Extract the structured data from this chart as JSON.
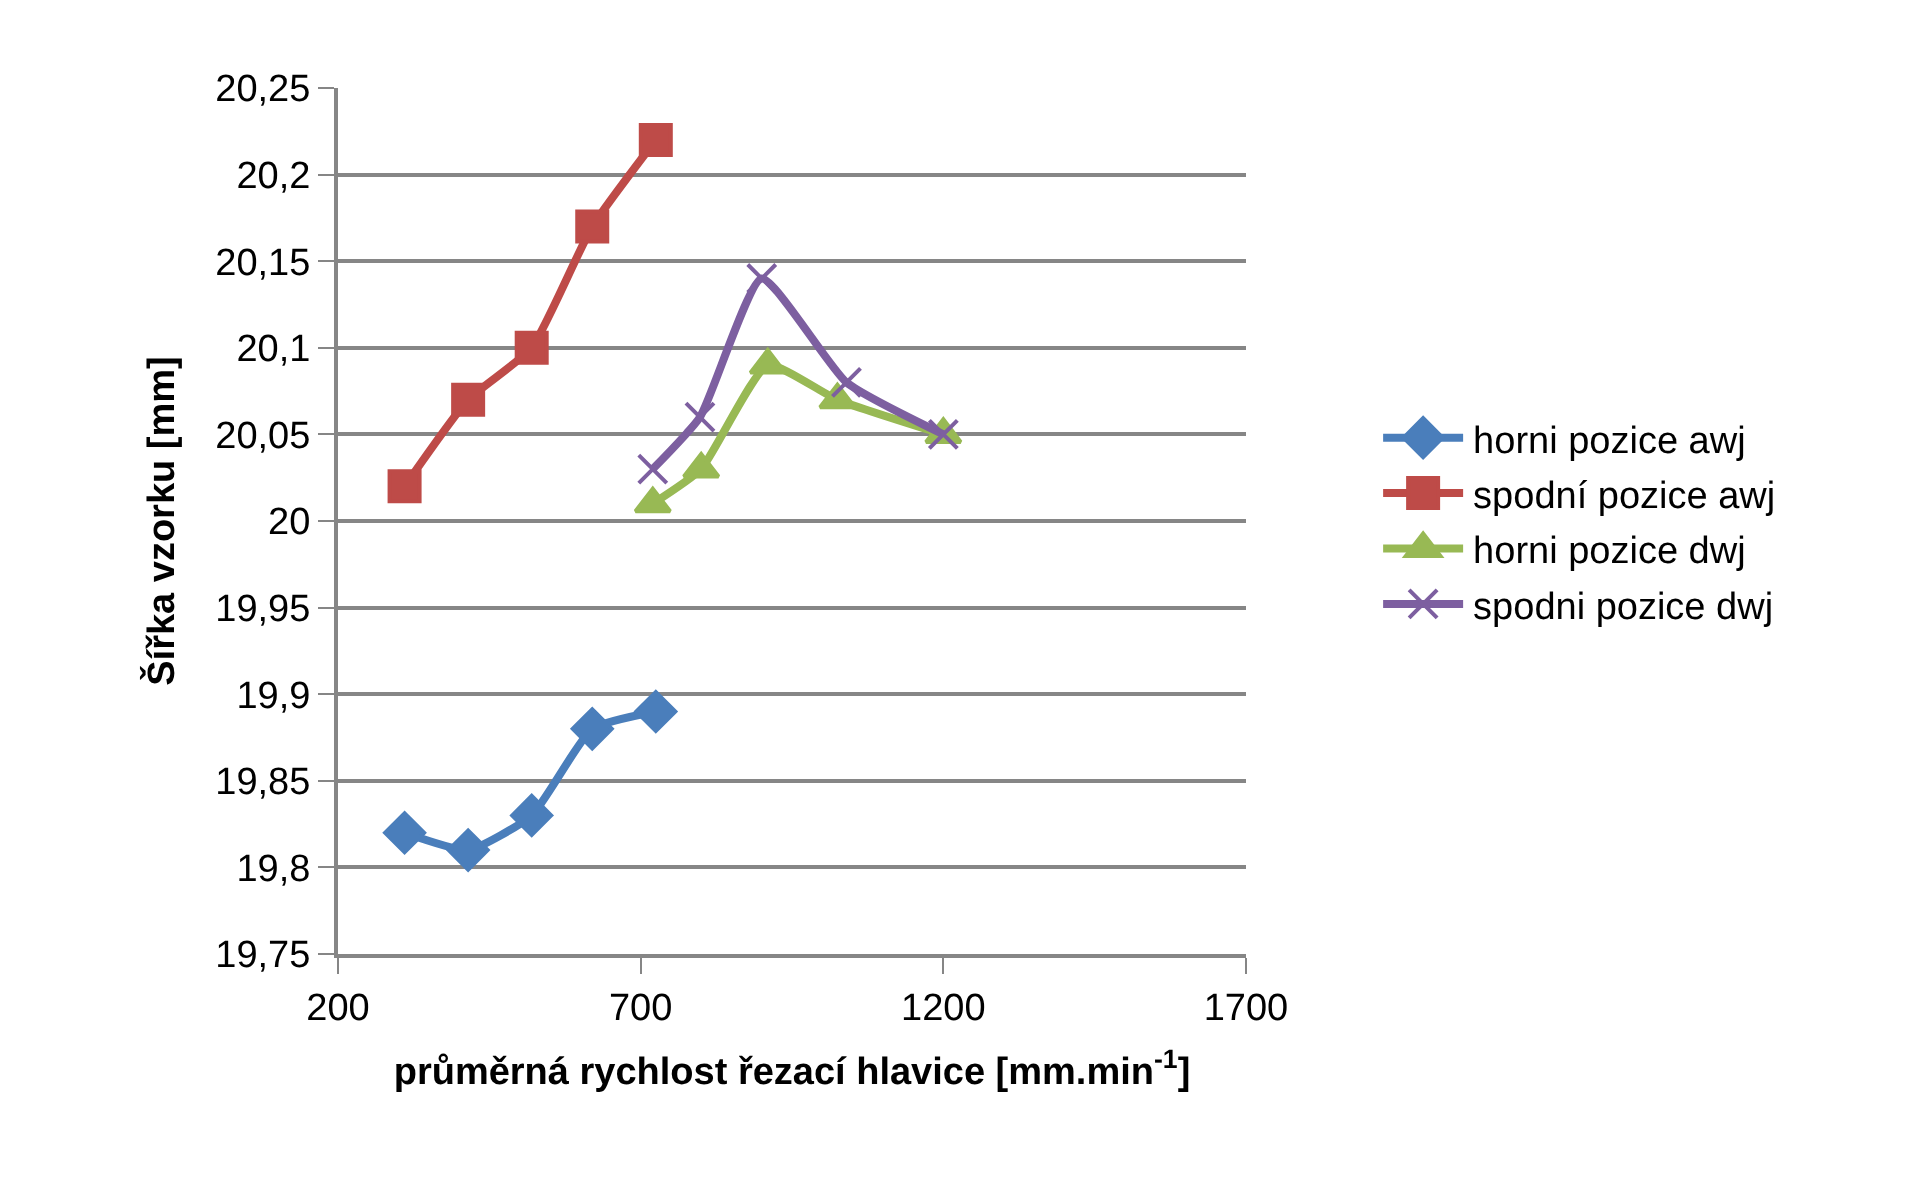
{
  "chart_data": {
    "type": "line",
    "xlabel": "průměrná rychlost řezací hlavice [mm.min$^{-1}$]",
    "ylabel": "Šířka vzorku [mm]",
    "xlim": [
      200,
      1700
    ],
    "xticks": [
      200,
      700,
      1200,
      1700
    ],
    "ylim": [
      19.75,
      20.25
    ],
    "yticks": [
      {
        "value": 19.75,
        "label": "19,75"
      },
      {
        "value": 19.8,
        "label": "19,8"
      },
      {
        "value": 19.85,
        "label": "19,85"
      },
      {
        "value": 19.9,
        "label": "19,9"
      },
      {
        "value": 19.95,
        "label": "19,95"
      },
      {
        "value": 20,
        "label": "20"
      },
      {
        "value": 20.05,
        "label": "20,05"
      },
      {
        "value": 20.1,
        "label": "20,1"
      },
      {
        "value": 20.15,
        "label": "20,15"
      },
      {
        "value": 20.2,
        "label": "20,2"
      },
      {
        "value": 20.25,
        "label": "20,25"
      }
    ],
    "grid": "y",
    "legend": "right",
    "series": [
      {
        "name": "horni pozice awj",
        "color": "#4a7ebb",
        "marker": "diamond",
        "x": [
          310,
          415,
          520,
          620,
          725
        ],
        "values": [
          19.82,
          19.81,
          19.83,
          19.88,
          19.89
        ]
      },
      {
        "name": "spodní pozice awj",
        "color": "#be4b48",
        "marker": "square",
        "x": [
          310,
          415,
          520,
          620,
          725
        ],
        "values": [
          20.02,
          20.07,
          20.1,
          20.17,
          20.22
        ]
      },
      {
        "name": "horni pozice dwj",
        "color": "#98b954",
        "marker": "triangle",
        "x": [
          720,
          800,
          910,
          1025,
          1200
        ],
        "values": [
          20.01,
          20.03,
          20.09,
          20.07,
          20.05
        ]
      },
      {
        "name": "spodni pozice dwj",
        "color": "#7d5fa0",
        "marker": "cross",
        "x": [
          720,
          798,
          900,
          1040,
          1200
        ],
        "values": [
          20.03,
          20.06,
          20.14,
          20.08,
          20.05
        ]
      }
    ]
  }
}
